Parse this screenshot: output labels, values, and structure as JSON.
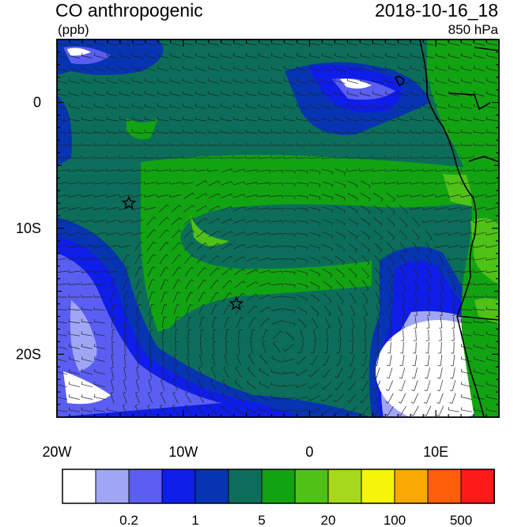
{
  "header": {
    "title": "CO anthropogenic",
    "units": "(ppb)",
    "datetime": "2018-10-16_18",
    "level": "850 hPa"
  },
  "axes": {
    "x_ticks": [
      {
        "value": -20,
        "label": "20W"
      },
      {
        "value": -10,
        "label": "10W"
      },
      {
        "value": 0,
        "label": "0"
      },
      {
        "value": 10,
        "label": "10E"
      }
    ],
    "y_ticks": [
      {
        "value": 0,
        "label": "0"
      },
      {
        "value": -10,
        "label": "10S"
      },
      {
        "value": -20,
        "label": "20S"
      }
    ],
    "lon_range": [
      -20,
      15
    ],
    "lat_range": [
      -25,
      5
    ]
  },
  "colorbar": {
    "colors": [
      "#ffffff",
      "#a0a6f4",
      "#5a5ef2",
      "#0f1de8",
      "#0634b3",
      "#0c6e5a",
      "#12a312",
      "#4ec217",
      "#a6d81c",
      "#f5f50a",
      "#f9a804",
      "#ff5e0a",
      "#ff1a1a"
    ],
    "labels": [
      {
        "index": 2,
        "text": "0.2"
      },
      {
        "index": 4,
        "text": "1"
      },
      {
        "index": 6,
        "text": "5"
      },
      {
        "index": 8,
        "text": "20"
      },
      {
        "index": 10,
        "text": "100"
      },
      {
        "index": 12,
        "text": "500"
      }
    ]
  },
  "markers": [
    {
      "name": "star-marker",
      "lon": -14.3,
      "lat": -8.0
    },
    {
      "name": "star-marker",
      "lon": -5.8,
      "lat": -16.0
    }
  ]
}
